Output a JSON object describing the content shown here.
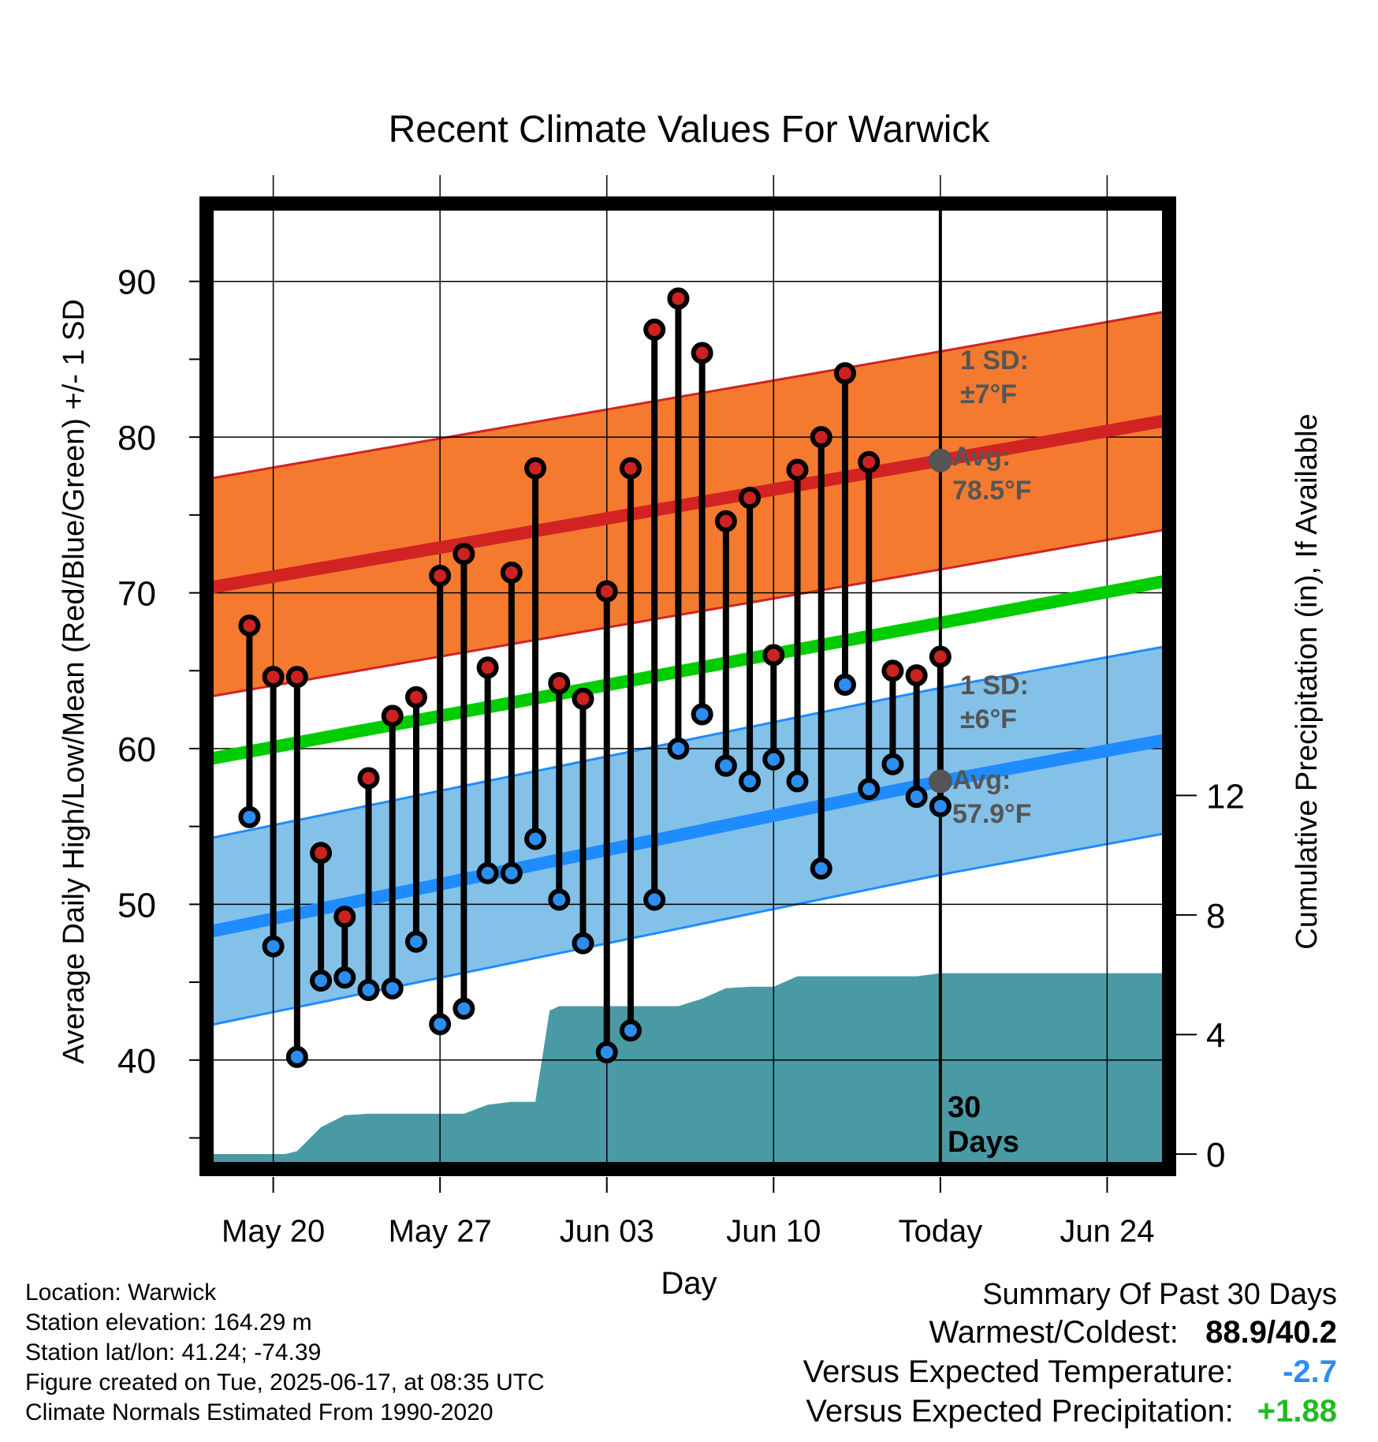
{
  "chart_data": {
    "type": "line",
    "title": "Recent Climate Values For Warwick",
    "xlabel": "Day",
    "ylabel": "Average Daily High/Low/Mean (Red/Blue/Green) +/- 1 SD",
    "y2label": "Cumulative Precipitation (in), If Available",
    "x_tick_labels": [
      "May 20",
      "May 27",
      "Jun 03",
      "Jun 10",
      "Today",
      "Jun 24"
    ],
    "x_ticks_day": [
      20,
      27,
      34,
      41,
      48,
      55
    ],
    "xlim_day": [
      17.2,
      57.6
    ],
    "ylim": [
      33,
      95
    ],
    "y_ticks": [
      40,
      50,
      60,
      70,
      80,
      90
    ],
    "y2lim": [
      -0.5,
      31.8
    ],
    "y2_ticks": [
      0,
      4,
      8,
      12
    ],
    "grid": true,
    "today_day": 48,
    "today_label": "30 Days",
    "normals": {
      "high_avg": {
        "x": [
          17.2,
          48,
          57.6
        ],
        "y": [
          70.3,
          78.5,
          81.1
        ],
        "color": "#d22323"
      },
      "high_sd": 7,
      "high_band_color": "#f47a30",
      "mean_avg": {
        "x": [
          17.2,
          57.6
        ],
        "y": [
          59.3,
          70.8
        ],
        "color": "#00cc00"
      },
      "low_avg": {
        "x": [
          17.2,
          48,
          57.6
        ],
        "y": [
          48.2,
          57.9,
          60.6
        ],
        "color": "#1e8cff"
      },
      "low_sd": 6,
      "low_band_color": "#84c1e8"
    },
    "annotations": {
      "high_sd": [
        "1 SD:",
        "±7°F"
      ],
      "high_avg": [
        "Avg:",
        "78.5°F"
      ],
      "low_sd": [
        "1 SD:",
        "±6°F"
      ],
      "low_avg": [
        "Avg:",
        "57.9°F"
      ]
    },
    "daily": {
      "day": [
        19,
        20,
        21,
        22,
        23,
        24,
        25,
        26,
        27,
        28,
        29,
        30,
        31,
        32,
        33,
        34,
        35,
        36,
        37,
        38,
        39,
        40,
        41,
        42,
        43,
        44,
        45,
        46,
        47
      ],
      "high": [
        67.9,
        64.6,
        64.6,
        53.3,
        49.2,
        58.1,
        62.1,
        63.3,
        71.1,
        72.5,
        65.2,
        71.3,
        78.0,
        64.2,
        63.2,
        70.1,
        78.0,
        86.9,
        88.9,
        85.4,
        74.6,
        76.1,
        66.0,
        77.9,
        80.0,
        84.1,
        78.4,
        65.0,
        64.7
      ],
      "low": [
        55.6,
        47.3,
        40.2,
        45.1,
        45.3,
        44.5,
        44.6,
        47.6,
        42.3,
        43.3,
        52.0,
        52.0,
        54.2,
        50.3,
        47.5,
        40.5,
        41.9,
        50.3,
        60.0,
        62.2,
        58.9,
        57.9,
        59.3,
        57.9,
        52.3,
        64.1,
        57.4,
        59.0,
        56.9
      ],
      "high_color": "#cc2222",
      "low_color": "#2b8ef0"
    },
    "extra_day": {
      "day": 48,
      "high": 65.9,
      "low": 56.3
    },
    "precip_cumulative": {
      "day": [
        17.2,
        20.0,
        20.5,
        21.0,
        22.0,
        23.0,
        24.0,
        25.0,
        26.0,
        27.0,
        28.0,
        29.0,
        30.0,
        31.0,
        31.6,
        32.0,
        33.0,
        34.0,
        35.0,
        36.0,
        37.0,
        38.0,
        39.0,
        40.0,
        41.0,
        42.0,
        43.0,
        44.0,
        45.0,
        46.0,
        47.0,
        48.0,
        57.6
      ],
      "value": [
        0,
        0,
        0,
        0.1,
        0.9,
        1.3,
        1.35,
        1.35,
        1.35,
        1.35,
        1.35,
        1.65,
        1.75,
        1.75,
        4.8,
        4.95,
        4.95,
        4.95,
        4.95,
        4.95,
        4.95,
        5.2,
        5.55,
        5.6,
        5.6,
        5.95,
        5.95,
        5.95,
        5.95,
        5.95,
        5.95,
        6.05,
        6.05
      ],
      "color": "#4a9aa5"
    }
  },
  "info": {
    "location": "Location: Warwick",
    "elevation": "Station elevation: 164.29 m",
    "latlon": "Station lat/lon: 41.24; -74.39",
    "created": "Figure created on Tue, 2025-06-17, at 08:35 UTC",
    "normals": "Climate Normals Estimated From 1990-2020"
  },
  "summary": {
    "title": "Summary Of Past 30 Days",
    "warm_cold_label": "Warmest/Coldest:",
    "warm_cold_value": "88.9/40.2",
    "temp_label": "Versus Expected Temperature:",
    "temp_value": "-2.7",
    "temp_color": "#2b8ef0",
    "precip_label": "Versus Expected Precipitation:",
    "precip_value": "+1.88",
    "precip_color": "#22bb22"
  }
}
